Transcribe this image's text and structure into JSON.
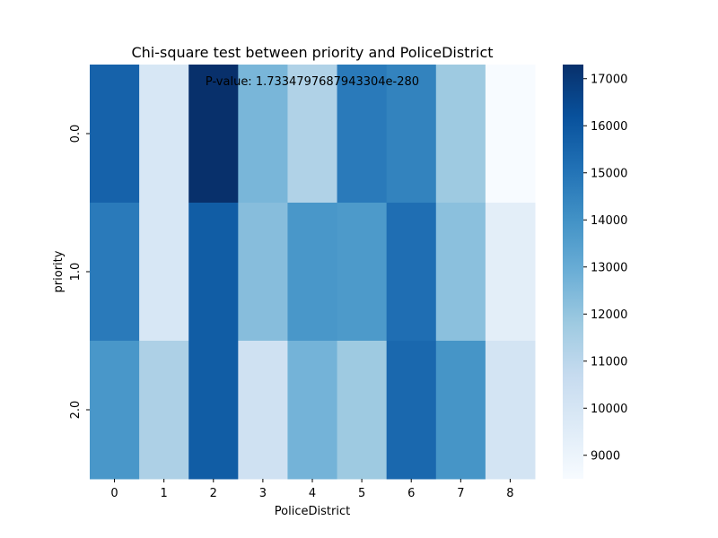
{
  "chart_data": {
    "type": "heatmap",
    "title": "Chi-square test between priority and PoliceDistrict",
    "xlabel": "PoliceDistrict",
    "ylabel": "priority",
    "annotation": "P-value: 1.7334797687943304e-280",
    "x_categories": [
      "0",
      "1",
      "2",
      "3",
      "4",
      "5",
      "6",
      "7",
      "8"
    ],
    "y_categories": [
      "0.0",
      "1.0",
      "2.0"
    ],
    "values": [
      [
        15600,
        9900,
        17300,
        12600,
        11300,
        14800,
        14500,
        11800,
        8500
      ],
      [
        14800,
        9900,
        15800,
        12300,
        13800,
        13700,
        15200,
        12200,
        9400
      ],
      [
        13800,
        11400,
        15800,
        10300,
        12700,
        11800,
        15400,
        13900,
        10100
      ]
    ],
    "colorbar": {
      "min": 8500,
      "max": 17300,
      "ticks": [
        9000,
        10000,
        11000,
        12000,
        13000,
        14000,
        15000,
        16000,
        17000
      ],
      "colormap": "Blues"
    }
  }
}
